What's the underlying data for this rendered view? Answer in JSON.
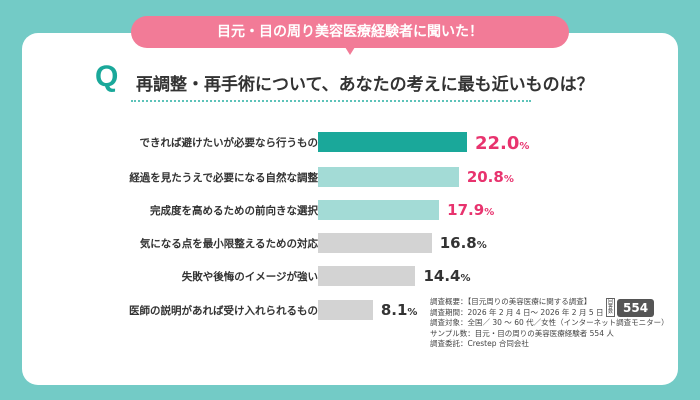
{
  "header": {
    "bubble": "目元・目の周り美容医療経験者に聞いた！",
    "q_mark": "Q",
    "question": "再調整・再手術について、あなたの考えに最も近いものは？"
  },
  "colors": {
    "background": "#73cbc6",
    "bubble": "#f27b97",
    "bar_top": "#1aa89a",
    "bar_light": "#a3dbd6",
    "bar_gray": "#d3d3d3",
    "highlight_value": "#e8336e"
  },
  "chart_data": {
    "type": "bar",
    "orientation": "horizontal",
    "unit": "%",
    "categories": [
      "できれば避けたいが必要なら行うもの",
      "経過を見たうえで必要になる自然な調整",
      "完成度を高めるための前向きな選択",
      "気になる点を最小限整えるための対応",
      "失敗や後悔のイメージが強い",
      "医師の説明があれば受け入れられるもの"
    ],
    "values": [
      22.0,
      20.8,
      17.9,
      16.8,
      14.4,
      8.1
    ],
    "value_labels": [
      {
        "main": "22.0",
        "unit": "%"
      },
      {
        "main": "20.8",
        "unit": "%"
      },
      {
        "main": "17.9",
        "unit": "%"
      },
      {
        "main": "16.8",
        "unit": "%"
      },
      {
        "main": "14.4",
        "unit": "%"
      },
      {
        "main": "8.1",
        "unit": "%"
      }
    ]
  },
  "notes": [
    "調査概要：【目元周りの美容医療に関する調査】",
    "調査期間：2026 年 2 月 4 日～ 2026 年 2 月 5 日",
    "調査対象：全国／ 30 ～ 60 代／女性（インターネット調査モニター）",
    "サンプル数：目元・目の周りの美容医療経験者 554 人",
    "調査委託：Crestep 合同会社"
  ],
  "badge": {
    "label": "回答数",
    "count": "554"
  }
}
